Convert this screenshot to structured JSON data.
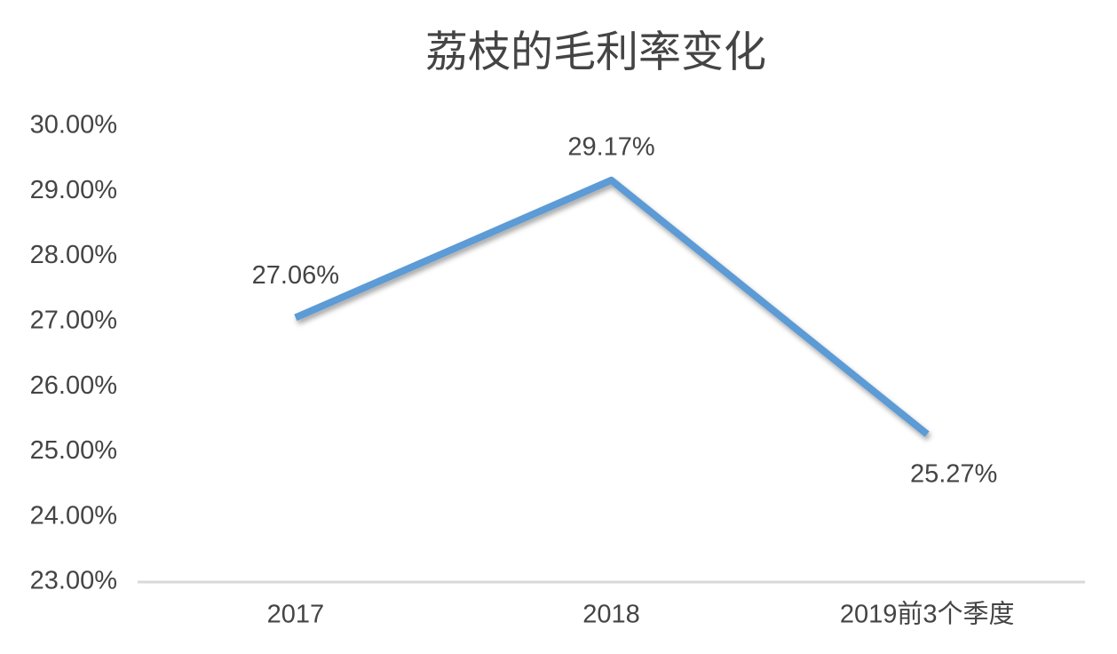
{
  "chart_data": {
    "type": "line",
    "title": "荔枝的毛利率变化",
    "categories": [
      "2017",
      "2018",
      "2019前3个季度"
    ],
    "values": [
      27.06,
      29.17,
      25.27
    ],
    "value_labels": [
      "27.06%",
      "29.17%",
      "25.27%"
    ],
    "color": "#5b9bd5",
    "ylim": [
      23,
      30
    ],
    "yticks": [
      {
        "value": 23,
        "label": "23.00%"
      },
      {
        "value": 24,
        "label": "24.00%"
      },
      {
        "value": 25,
        "label": "25.00%"
      },
      {
        "value": 26,
        "label": "26.00%"
      },
      {
        "value": 27,
        "label": "27.00%"
      },
      {
        "value": 28,
        "label": "28.00%"
      },
      {
        "value": 29,
        "label": "29.00%"
      },
      {
        "value": 30,
        "label": "30.00%"
      }
    ]
  }
}
